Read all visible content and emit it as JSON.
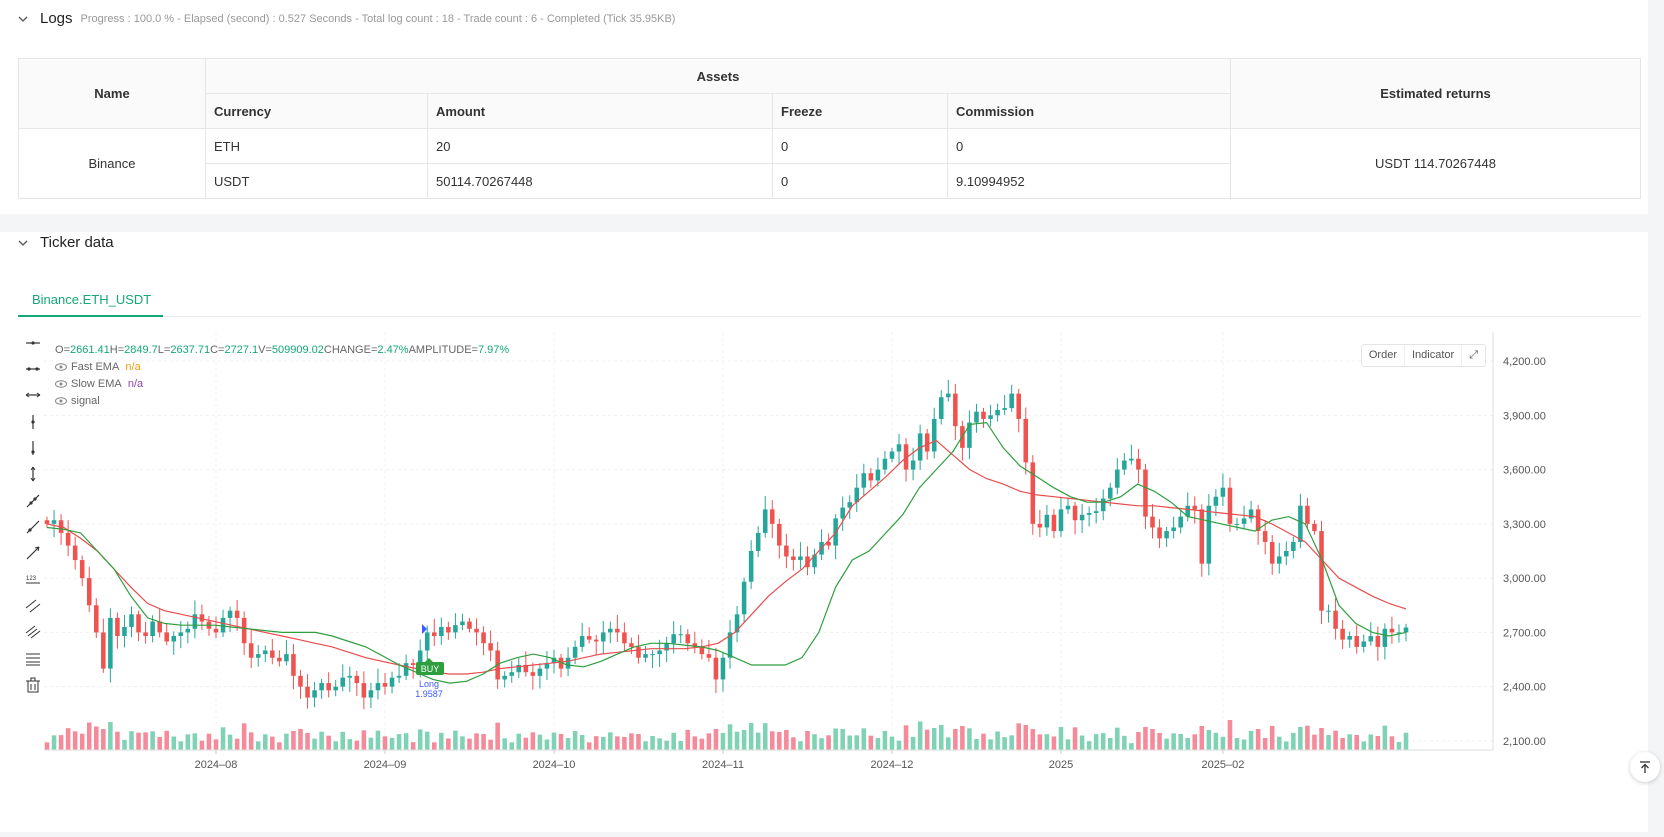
{
  "logs": {
    "title": "Logs",
    "status": "Progress : 100.0 % - Elapsed (second) : 0.527  Seconds - Total log count : 18 - Trade count : 6 - Completed (Tick 35.95KB)",
    "table": {
      "headers": {
        "name": "Name",
        "assets": "Assets",
        "estimated": "Estimated returns"
      },
      "subheaders": [
        "Currency",
        "Amount",
        "Freeze",
        "Commission"
      ],
      "exchange": "Binance",
      "rows": [
        [
          "ETH",
          "20",
          "0",
          "0"
        ],
        [
          "USDT",
          "50114.70267448",
          "0",
          "9.10994952"
        ]
      ],
      "estimated_returns": "USDT 114.70267448"
    }
  },
  "ticker": {
    "title": "Ticker data",
    "tab": "Binance.ETH_USDT",
    "legend": {
      "ohlc": {
        "o_label": "O=",
        "o": "2661.41",
        "h_label": " H=",
        "h": "2849.7",
        "l_label": " L=",
        "l": "2637.71",
        "c_label": " C=",
        "c": "2727.1",
        "v_label": " V=",
        "v": "509909.02",
        "chg_label": " CHANGE=",
        "chg": "2.47%",
        "amp_label": " AMPLITUDE=",
        "amp": "7.97%"
      },
      "fast_ema": "Fast EMA",
      "fast_val": "n/a",
      "slow_ema": "Slow EMA",
      "slow_val": "n/a",
      "signal": "signal"
    },
    "buttons": {
      "order": "Order",
      "indicator": "Indicator"
    },
    "marker": {
      "buy": "BUY",
      "long": "Long",
      "qty": "1.9587"
    },
    "colors": {
      "up": "#26a69a",
      "down": "#ef5350",
      "fast": "#2e9e3e",
      "slow": "#e84c4c",
      "accent": "#14a876"
    }
  },
  "chart_data": {
    "type": "candlestick",
    "x_ticks": [
      "2024–08",
      "2024–09",
      "2024–10",
      "2024–11",
      "2024–12",
      "2025",
      "2025–02"
    ],
    "y_ticks": [
      "4,200.00",
      "3,900.00",
      "3,600.00",
      "3,300.00",
      "3,000.00",
      "2,700.00",
      "2,400.00",
      "2,100.00"
    ],
    "ylim": [
      2050,
      4250
    ],
    "close": [
      3300,
      3320,
      3250,
      3180,
      3100,
      3000,
      2850,
      2700,
      2500,
      2780,
      2680,
      2730,
      2800,
      2700,
      2680,
      2760,
      2700,
      2650,
      2680,
      2700,
      2720,
      2800,
      2760,
      2720,
      2700,
      2780,
      2820,
      2780,
      2640,
      2560,
      2580,
      2600,
      2560,
      2540,
      2580,
      2460,
      2400,
      2340,
      2380,
      2420,
      2380,
      2400,
      2450,
      2460,
      2420,
      2340,
      2380,
      2420,
      2400,
      2450,
      2460,
      2530,
      2520,
      2600,
      2700,
      2680,
      2730,
      2700,
      2740,
      2760,
      2720,
      2700,
      2640,
      2600,
      2440,
      2460,
      2480,
      2520,
      2480,
      2460,
      2500,
      2530,
      2560,
      2500,
      2560,
      2620,
      2680,
      2660,
      2650,
      2700,
      2720,
      2700,
      2640,
      2620,
      2560,
      2580,
      2580,
      2600,
      2640,
      2690,
      2690,
      2640,
      2620,
      2580,
      2560,
      2440,
      2560,
      2700,
      2800,
      2980,
      3150,
      3250,
      3380,
      3300,
      3180,
      3120,
      3100,
      3120,
      3060,
      3130,
      3200,
      3180,
      3330,
      3390,
      3420,
      3500,
      3580,
      3540,
      3600,
      3660,
      3700,
      3740,
      3600,
      3650,
      3800,
      3700,
      3880,
      4000,
      4020,
      3840,
      3720,
      3860,
      3920,
      3880,
      3900,
      3930,
      3940,
      4020,
      3880,
      3640,
      3300,
      3280,
      3350,
      3260,
      3380,
      3400,
      3320,
      3350,
      3360,
      3370,
      3440,
      3500,
      3600,
      3650,
      3660,
      3600,
      3340,
      3280,
      3220,
      3260,
      3280,
      3340,
      3400,
      3380,
      3080,
      3400,
      3450,
      3500,
      3300,
      3300,
      3330,
      3380,
      3260,
      3200,
      3080,
      3120,
      3150,
      3200,
      3400,
      3300,
      3260,
      2820,
      2820,
      2720,
      2660,
      2680,
      2620,
      2650,
      2680,
      2620,
      2720,
      2700,
      2700,
      2727
    ],
    "fast_ema_approx": [
      3280,
      3270,
      3250,
      3150,
      3050,
      2900,
      2780,
      2750,
      2740,
      2740,
      2740,
      2730,
      2720,
      2710,
      2700,
      2700,
      2700,
      2680,
      2650,
      2620,
      2570,
      2520,
      2480,
      2440,
      2420,
      2430,
      2470,
      2530,
      2560,
      2580,
      2560,
      2520,
      2510,
      2540,
      2580,
      2620,
      2640,
      2640,
      2630,
      2620,
      2600,
      2560,
      2520,
      2520,
      2520,
      2560,
      2700,
      2950,
      3100,
      3150,
      3250,
      3350,
      3500,
      3600,
      3700,
      3850,
      3860,
      3720,
      3620,
      3560,
      3500,
      3450,
      3420,
      3420,
      3450,
      3520,
      3480,
      3420,
      3340,
      3320,
      3300,
      3280,
      3260,
      3320,
      3340,
      3300,
      3100,
      2850,
      2750,
      2700,
      2680,
      2700
    ],
    "slow_ema_approx": [
      3300,
      3280,
      3220,
      3150,
      3050,
      2950,
      2860,
      2820,
      2800,
      2780,
      2760,
      2740,
      2720,
      2700,
      2680,
      2660,
      2640,
      2620,
      2590,
      2560,
      2540,
      2520,
      2500,
      2480,
      2470,
      2470,
      2480,
      2500,
      2510,
      2520,
      2530,
      2540,
      2560,
      2580,
      2590,
      2600,
      2610,
      2610,
      2610,
      2620,
      2640,
      2700,
      2800,
      2900,
      2980,
      3050,
      3150,
      3250,
      3400,
      3480,
      3560,
      3650,
      3720,
      3760,
      3680,
      3600,
      3550,
      3520,
      3480,
      3460,
      3450,
      3440,
      3430,
      3420,
      3410,
      3400,
      3400,
      3390,
      3380,
      3370,
      3360,
      3350,
      3340,
      3300,
      3250,
      3200,
      3100,
      3000,
      2950,
      2900,
      2860,
      2830
    ]
  }
}
